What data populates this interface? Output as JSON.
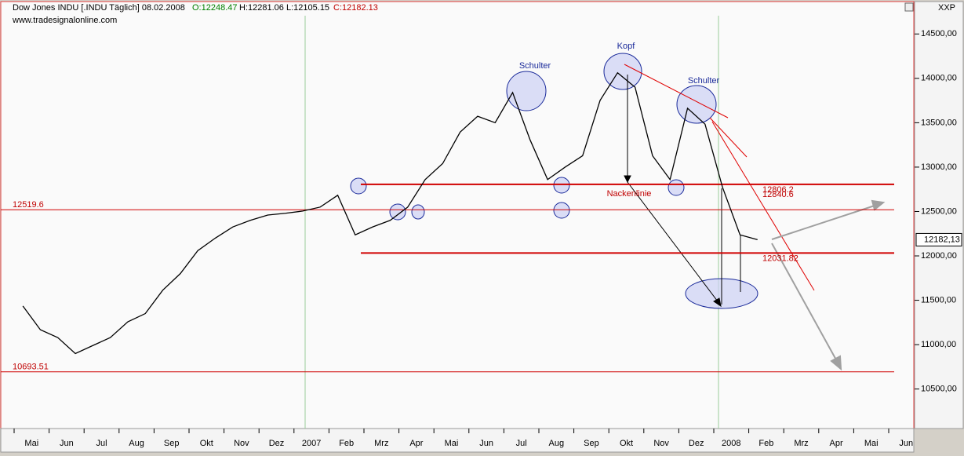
{
  "header": {
    "title": "Dow Jones INDU [.INDU Täglich] 08.02.2008",
    "open": "O:12248.47",
    "high": "H:12281.06",
    "low": "L:12105.15",
    "close": "C:12182.13",
    "source": "www.tradesignalonline.com",
    "symbol_box": "XXP"
  },
  "chart_data": {
    "type": "line",
    "color": "#000000",
    "categories": [
      "Mai",
      null,
      "Jun",
      null,
      "Jul",
      null,
      "Aug",
      null,
      "Sep",
      null,
      "Okt",
      null,
      "Nov",
      null,
      "Dez",
      null,
      "2007",
      null,
      "Feb",
      null,
      "Mrz",
      null,
      "Apr",
      null,
      "Mai",
      null,
      "Jun",
      null,
      "Jul",
      null,
      "Aug",
      null,
      "Sep",
      null,
      "Okt",
      null,
      "Nov",
      null,
      "Dez",
      null,
      "2008",
      null,
      "Feb",
      null,
      "Mrz",
      null,
      "Apr",
      null,
      "Mai",
      null,
      "Jun",
      null
    ],
    "values": [
      11435,
      11168,
      11079,
      10900,
      10990,
      11080,
      11257,
      11350,
      11614,
      11800,
      12059,
      12200,
      12326,
      12400,
      12460,
      12480,
      12505,
      12550,
      12683,
      12237,
      12326,
      12400,
      12549,
      12860,
      13040,
      13395,
      13573,
      13500,
      13840,
      13306,
      12860,
      13000,
      13128,
      13752,
      14063,
      13900,
      13128,
      12860,
      13663,
      13484,
      12772,
      12237,
      12182.13,
      null,
      null,
      null,
      null,
      null,
      null,
      null,
      null,
      null
    ],
    "ylim": [
      10055,
      14865
    ],
    "yticks": [
      {
        "value": 10500,
        "label": "10500,00"
      },
      {
        "value": 11000,
        "label": "11000,00"
      },
      {
        "value": 11500,
        "label": "11500,00"
      },
      {
        "value": 12000,
        "label": "12000,00"
      },
      {
        "value": 12500,
        "label": "12500,00"
      },
      {
        "value": 13000,
        "label": "13000,00"
      },
      {
        "value": 13500,
        "label": "13500,00"
      },
      {
        "value": 14000,
        "label": "14000,00"
      },
      {
        "value": 14500,
        "label": "14500,00"
      }
    ],
    "last_price": {
      "value": 12182.13,
      "label": "12182,13"
    },
    "levels": [
      {
        "value": 12519.6,
        "label": "12519.6"
      },
      {
        "value": 10693.51,
        "label": "10693.51"
      },
      {
        "value": 12806.2,
        "label": "12806.2"
      },
      {
        "value": 12031.82,
        "label": "12031.82"
      }
    ],
    "level_note": "12840.6",
    "annotations": [
      "Schulter",
      "Kopf",
      "Schulter",
      "Nackenlinie"
    ]
  }
}
